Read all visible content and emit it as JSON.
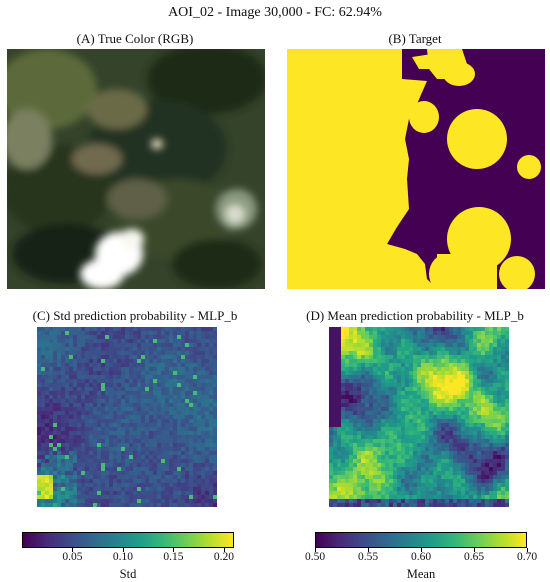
{
  "figure": {
    "title": "AOI_02 - Image 30,000 - FC: 62.94%"
  },
  "panels": {
    "a": {
      "title": "(A) True Color (RGB)"
    },
    "b": {
      "title": "(B) Target"
    },
    "c": {
      "title": "(C) Std prediction probability - MLP_b"
    },
    "d": {
      "title": "(D) Mean prediction probability - MLP_b"
    }
  },
  "colorbars": {
    "std": {
      "label": "Std",
      "ticks": [
        "0.05",
        "0.10",
        "0.15",
        "0.20"
      ],
      "values": [
        0.05,
        0.1,
        0.15,
        0.2
      ],
      "range": [
        0.0,
        0.21
      ]
    },
    "mean": {
      "label": "Mean",
      "ticks": [
        "0.50",
        "0.55",
        "0.60",
        "0.65",
        "0.70"
      ],
      "values": [
        0.5,
        0.55,
        0.6,
        0.65,
        0.7
      ],
      "range": [
        0.5,
        0.7
      ]
    }
  },
  "colors": {
    "viridis_low": "#440154",
    "viridis_mid": "#21918c",
    "viridis_high": "#fde725",
    "target_class_1": "#fde725",
    "target_class_0": "#440154"
  }
}
